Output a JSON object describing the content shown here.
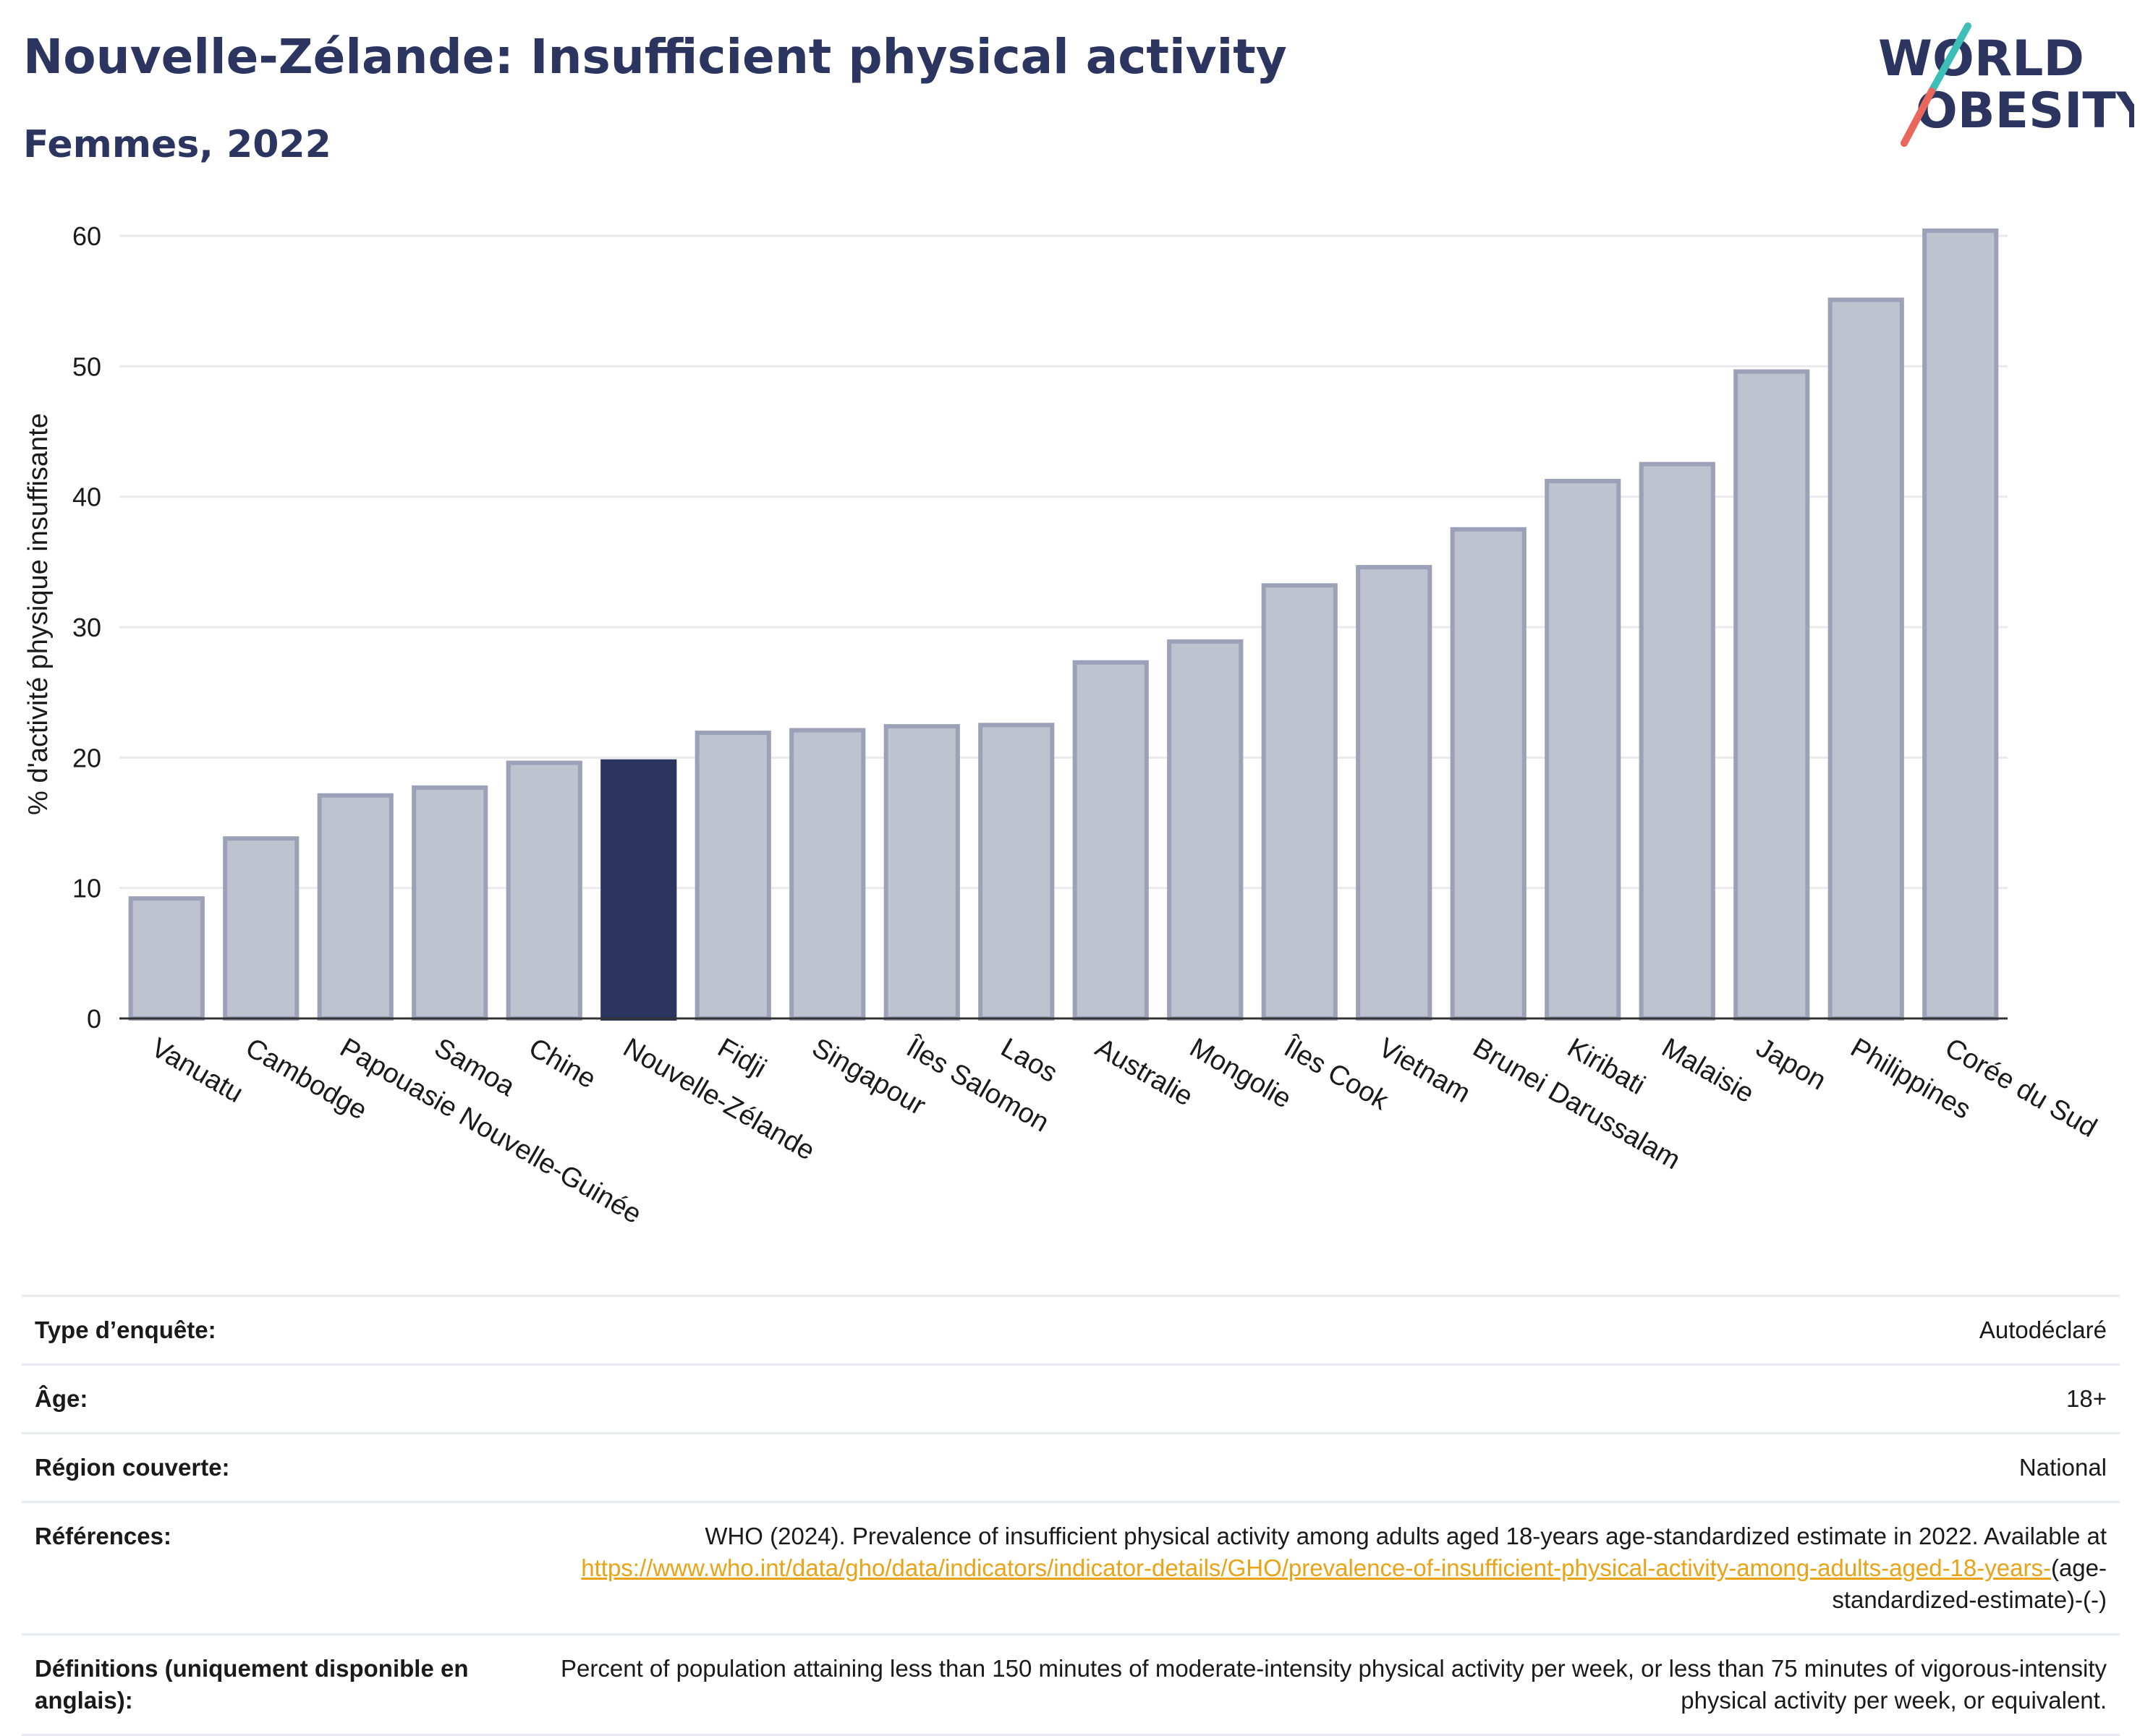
{
  "header": {
    "title": "Nouvelle-Zélande: Insufficient physical activity",
    "subtitle": "Femmes, 2022"
  },
  "logo": {
    "line1": "WORLD",
    "line2": "OBESITY",
    "colors": {
      "text": "#2b3560",
      "slash_top": "#3dbfb8",
      "slash_bottom": "#e8675a"
    }
  },
  "colors": {
    "bar": "#bfc2cf",
    "bar_stroke": "#9da1b8",
    "highlight": "#2b3560",
    "grid": "#e9e9ee",
    "axis": "#333333"
  },
  "chart_data": {
    "type": "bar",
    "ylabel": "% d'activité physique insuffisante",
    "ylim": [
      0,
      62
    ],
    "yticks": [
      0,
      10,
      20,
      30,
      40,
      50,
      60
    ],
    "grid": true,
    "highlight_category": "Nouvelle-Zélande",
    "categories": [
      "Vanuatu",
      "Cambodge",
      "Papouasie Nouvelle-Guinée",
      "Samoa",
      "Chine",
      "Nouvelle-Zélande",
      "Fidji",
      "Singapour",
      "Îles Salomon",
      "Laos",
      "Australie",
      "Mongolie",
      "Îles Cook",
      "Vietnam",
      "Brunei Darussalam",
      "Kiribati",
      "Malaisie",
      "Japon",
      "Philippines",
      "Corée du Sud"
    ],
    "values": [
      9.2,
      13.8,
      17.1,
      17.7,
      19.6,
      19.7,
      21.9,
      22.1,
      22.4,
      22.5,
      27.3,
      28.9,
      33.2,
      34.6,
      37.5,
      41.2,
      42.5,
      49.6,
      55.1,
      60.4
    ]
  },
  "meta": {
    "rows": [
      {
        "label": "Type d’enquête:",
        "value": "Autodéclaré"
      },
      {
        "label": "Âge:",
        "value": "18+"
      },
      {
        "label": "Région couverte:",
        "value": "National"
      },
      {
        "label": "Références:",
        "value_before": "WHO (2024). Prevalence of insufficient physical activity among adults aged 18-years age-standardized estimate in 2022. Available at ",
        "link": "https://www.who.int/data/gho/data/indicators/indicator-details/GHO/prevalence-of-insufficient-physical-activity-among-adults-aged-18-years-",
        "value_after": "(age-standardized-estimate)-(-)"
      },
      {
        "label": "Définitions (uniquement disponible en anglais):",
        "value": "Percent of population attaining less than 150 minutes of moderate-intensity physical activity per week, or less than 75 minutes of vigorous-intensity physical activity per week, or equivalent."
      }
    ]
  }
}
